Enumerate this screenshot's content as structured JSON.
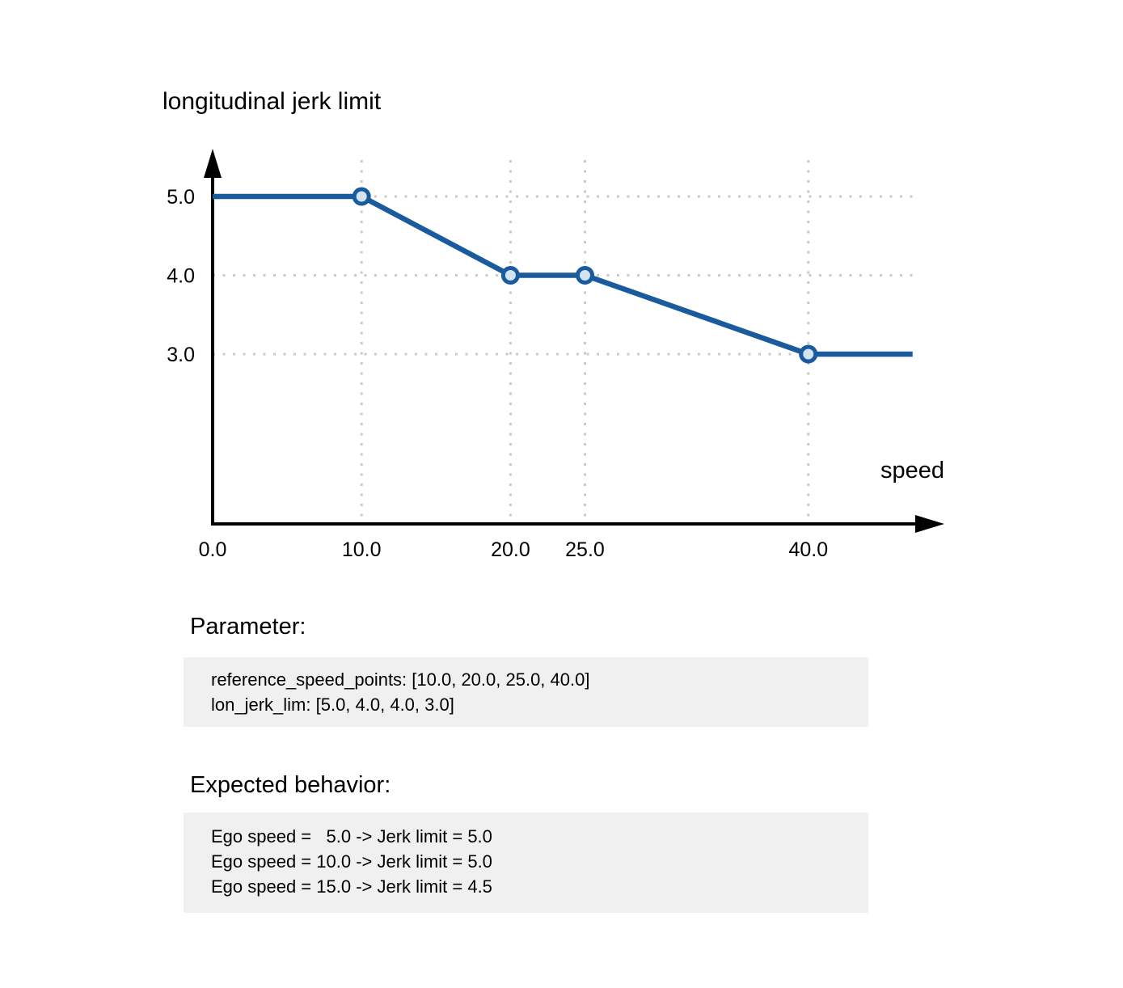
{
  "chart_data": {
    "type": "line",
    "title": "longitudinal jerk limit",
    "xlabel": "speed",
    "ylabel": "",
    "grid": true,
    "x_ticks": [
      0,
      10,
      20,
      25,
      40
    ],
    "x_tick_labels": [
      "0.0",
      "10.0",
      "20.0",
      "25.0",
      "40.0"
    ],
    "y_ticks": [
      5,
      4,
      3
    ],
    "y_tick_labels": [
      "5.0",
      "4.0",
      "3.0"
    ],
    "xlim": [
      0,
      49
    ],
    "ylim_shown": [
      3.0,
      5.0
    ],
    "series": [
      {
        "name": "lon_jerk_lim",
        "x": [
          0,
          10,
          20,
          25,
          40,
          47
        ],
        "y": [
          5.0,
          5.0,
          4.0,
          4.0,
          3.0,
          3.0
        ],
        "markers": [
          [
            10,
            5.0
          ],
          [
            20,
            4.0
          ],
          [
            25,
            4.0
          ],
          [
            40,
            3.0
          ]
        ]
      }
    ],
    "colors": {
      "line": "#1a5b9e",
      "marker_fill": "#d3e3f3",
      "grid": "#c9c9c9",
      "axis": "#000000"
    }
  },
  "parameter": {
    "heading": "Parameter:",
    "lines": [
      "reference_speed_points: [10.0, 20.0, 25.0, 40.0]",
      "lon_jerk_lim: [5.0, 4.0, 4.0, 3.0]"
    ]
  },
  "expected_behavior": {
    "heading": "Expected behavior:",
    "lines": [
      "Ego speed =   5.0 -> Jerk limit = 5.0",
      "Ego speed = 10.0 -> Jerk limit = 5.0",
      "Ego speed = 15.0 -> Jerk limit = 4.5"
    ]
  },
  "colors": {
    "background": "#ffffff",
    "box_bg": "#f0f0f0",
    "text": "#000000"
  }
}
